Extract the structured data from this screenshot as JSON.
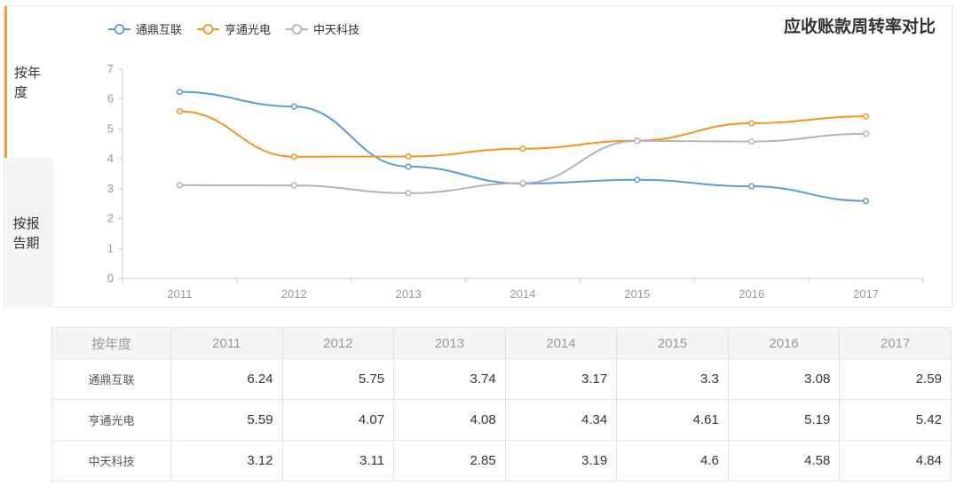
{
  "sidebar": {
    "tab_year": "按年度",
    "tab_report": "按报告期"
  },
  "chart_data": {
    "type": "line",
    "title": "应收账款周转率对比",
    "categories": [
      "2011",
      "2012",
      "2013",
      "2014",
      "2015",
      "2016",
      "2017"
    ],
    "ylim": [
      0,
      7
    ],
    "yticks": [
      0,
      1,
      2,
      3,
      4,
      5,
      6,
      7
    ],
    "grid": false,
    "legend": "top-left",
    "series": [
      {
        "name": "通鼎互联",
        "color": "#5b9bd5",
        "values": [
          6.24,
          5.75,
          3.74,
          3.17,
          3.3,
          3.08,
          2.59
        ]
      },
      {
        "name": "亨通光电",
        "color": "#f7931e",
        "values": [
          5.59,
          4.07,
          4.08,
          4.34,
          4.61,
          5.19,
          5.42
        ]
      },
      {
        "name": "中天科技",
        "color": "#b3b3b3",
        "values": [
          3.12,
          3.11,
          2.85,
          3.19,
          4.6,
          4.58,
          4.84
        ]
      }
    ]
  },
  "table": {
    "header_label": "按年度",
    "years": [
      "2011",
      "2012",
      "2013",
      "2014",
      "2015",
      "2016",
      "2017"
    ],
    "rows": [
      {
        "name": "通鼎互联",
        "values": [
          "6.24",
          "5.75",
          "3.74",
          "3.17",
          "3.3",
          "3.08",
          "2.59"
        ]
      },
      {
        "name": "亨通光电",
        "values": [
          "5.59",
          "4.07",
          "4.08",
          "4.34",
          "4.61",
          "5.19",
          "5.42"
        ]
      },
      {
        "name": "中天科技",
        "values": [
          "3.12",
          "3.11",
          "2.85",
          "3.19",
          "4.6",
          "4.58",
          "4.84"
        ]
      }
    ]
  }
}
